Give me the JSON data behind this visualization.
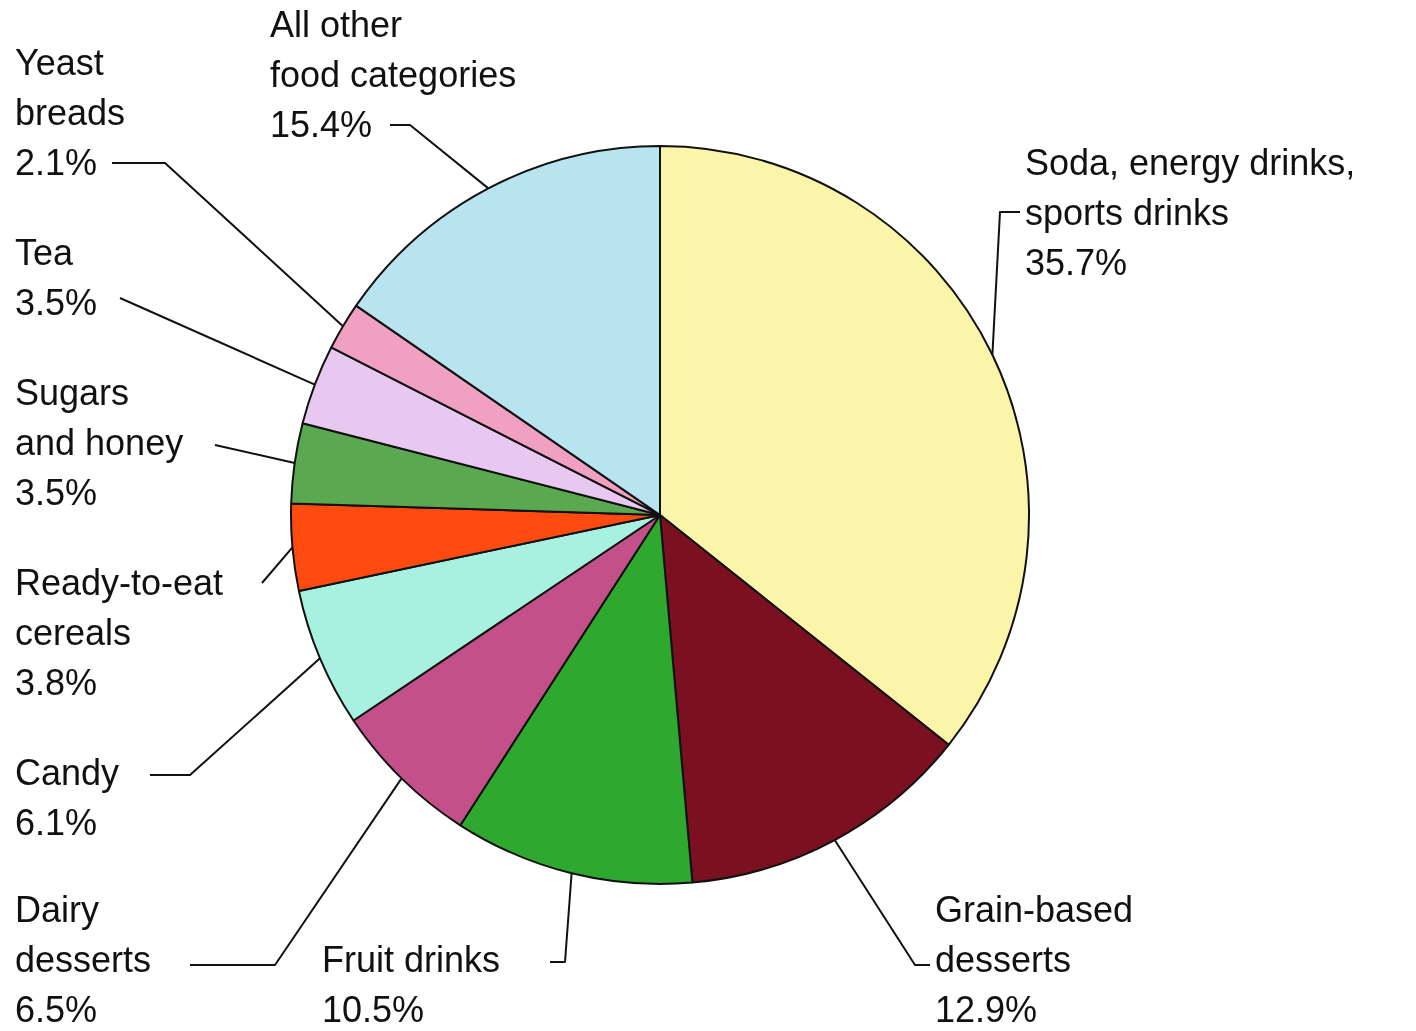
{
  "chart_data": {
    "type": "pie",
    "categories": [
      "Soda, energy drinks, sports drinks",
      "Grain-based desserts",
      "Fruit drinks",
      "Dairy desserts",
      "Candy",
      "Ready-to-eat cereals",
      "Sugars and honey",
      "Tea",
      "Yeast breads",
      "All other food categories"
    ],
    "values": [
      35.7,
      12.9,
      10.5,
      6.5,
      6.1,
      3.8,
      3.5,
      3.5,
      2.1,
      15.4
    ],
    "value_labels": [
      "35.7%",
      "12.9%",
      "10.5%",
      "6.5%",
      "6.1%",
      "3.8%",
      "3.5%",
      "3.5%",
      "2.1%",
      "15.4%"
    ],
    "colors": [
      "#faf5a8",
      "#7a1020",
      "#2ea82e",
      "#c4508a",
      "#a8f0e0",
      "#ff4a10",
      "#5aa850",
      "#e8c8f0",
      "#f0a0c0",
      "#b8e4f0"
    ],
    "legend": false
  }
}
